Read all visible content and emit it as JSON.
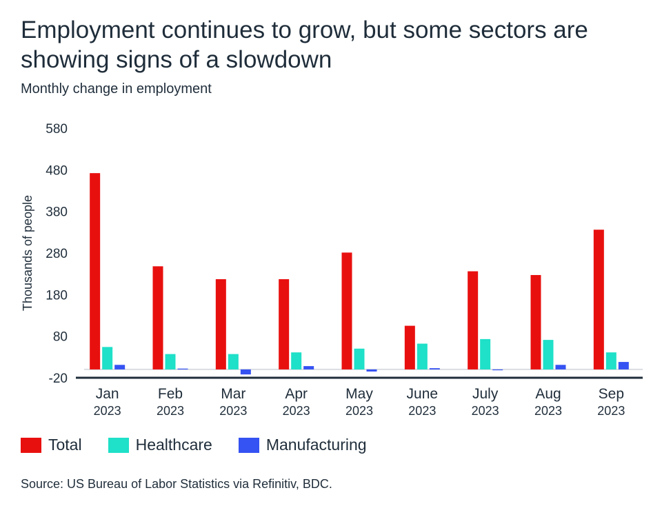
{
  "title": "Employment continues to grow, but some sectors are showing signs of a slowdown",
  "subtitle": "Monthly change in employment",
  "source": "Source: US Bureau of Labor Statistics via Refinitiv, BDC.",
  "colors": {
    "total": "#e8100f",
    "healthcare": "#1fe0c8",
    "manufacturing": "#3552f2",
    "axis": "#1f2d3a"
  },
  "chart_data": {
    "type": "bar",
    "ylabel": "Thousands of people",
    "ylim": [
      -20,
      580
    ],
    "yticks": [
      580,
      480,
      380,
      280,
      180,
      80,
      -20
    ],
    "categories": [
      {
        "month": "Jan",
        "year": "2023"
      },
      {
        "month": "Feb",
        "year": "2023"
      },
      {
        "month": "Mar",
        "year": "2023"
      },
      {
        "month": "Apr",
        "year": "2023"
      },
      {
        "month": "May",
        "year": "2023"
      },
      {
        "month": "June",
        "year": "2023"
      },
      {
        "month": "July",
        "year": "2023"
      },
      {
        "month": "Aug",
        "year": "2023"
      },
      {
        "month": "Sep",
        "year": "2023"
      }
    ],
    "series": [
      {
        "name": "Total",
        "color": "#e8100f",
        "values": [
          472,
          248,
          217,
          217,
          281,
          105,
          236,
          227,
          336
        ]
      },
      {
        "name": "Healthcare",
        "color": "#1fe0c8",
        "values": [
          54,
          37,
          37,
          41,
          50,
          62,
          73,
          71,
          41
        ]
      },
      {
        "name": "Manufacturing",
        "color": "#3552f2",
        "values": [
          11,
          2,
          -12,
          8,
          -5,
          3,
          -2,
          11,
          18
        ]
      }
    ],
    "grid": false,
    "legend": "bottom-left"
  }
}
